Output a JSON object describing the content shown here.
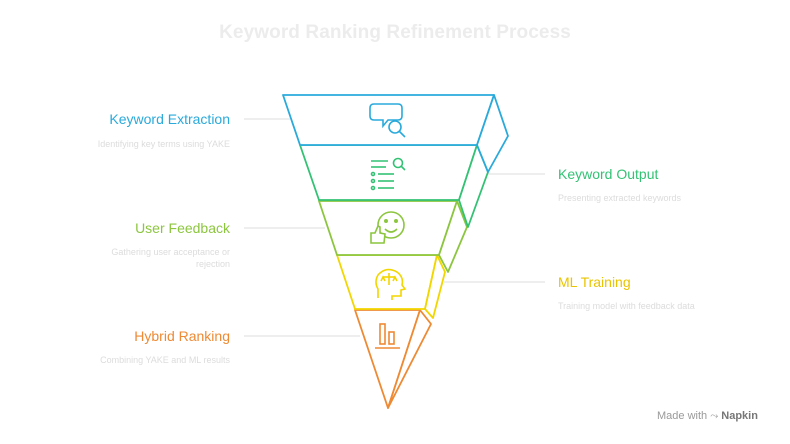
{
  "title": "Keyword Ranking Refinement Process",
  "stages": [
    {
      "label": "Keyword Extraction",
      "desc": "Identifying key terms using YAKE",
      "icon": "search-chat-icon",
      "color": "#2aaadb"
    },
    {
      "label": "Keyword Output",
      "desc": "Presenting extracted keywords",
      "icon": "list-search-icon",
      "color": "#33c274"
    },
    {
      "label": "User Feedback",
      "desc": "Gathering user acceptance or rejection",
      "icon": "smile-thumbs-up-icon",
      "color": "#8cc63f"
    },
    {
      "label": "ML Training",
      "desc": "Training model with feedback data",
      "icon": "head-balance-icon",
      "color": "#f2d600"
    },
    {
      "label": "Hybrid Ranking",
      "desc": "Combining YAKE and ML results",
      "icon": "bar-chart-icon",
      "color": "#ee8a34"
    }
  ],
  "brand": {
    "prefix": "Made with",
    "name": "Napkin"
  }
}
